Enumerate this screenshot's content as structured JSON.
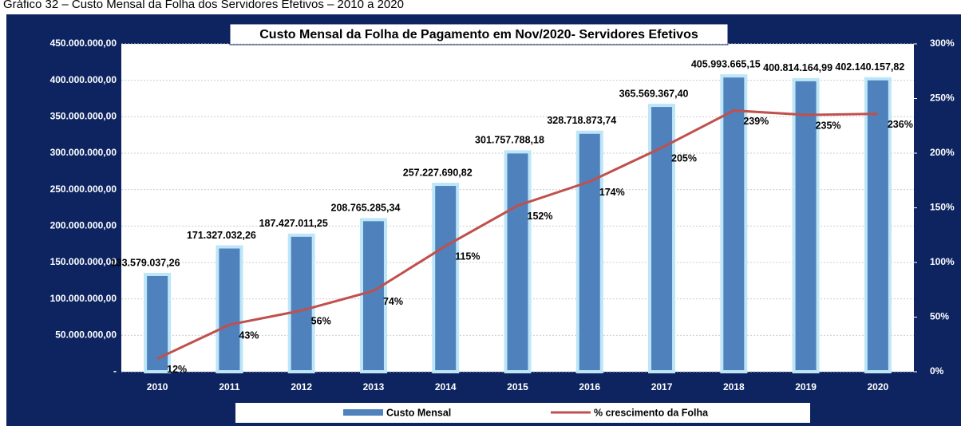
{
  "caption": "Gráfico 32 – Custo Mensal da Folha dos Servidores Efetivos – 2010 a 2020",
  "chart_data": {
    "type": "bar",
    "title": "Custo Mensal da Folha de Pagamento em Nov/2020- Servidores Efetivos",
    "categories": [
      "2010",
      "2011",
      "2012",
      "2013",
      "2014",
      "2015",
      "2016",
      "2017",
      "2018",
      "2019",
      "2020"
    ],
    "series": [
      {
        "name": "Custo Mensal",
        "type": "bar",
        "color": "#4f81bd",
        "values": [
          133579037.26,
          171327032.26,
          187427011.25,
          208765285.34,
          257227690.82,
          301757788.18,
          328718873.74,
          365569367.4,
          405993665.15,
          400814164.99,
          402140157.82
        ],
        "value_labels": [
          "133.579.037,26",
          "171.327.032,26",
          "187.427.011,25",
          "208.765.285,34",
          "257.227.690,82",
          "301.757.788,18",
          "328.718.873,74",
          "365.569.367,40",
          "405.993.665,15",
          "400.814.164,99",
          "402.140.157,82"
        ]
      },
      {
        "name": "% crescimento da Folha",
        "type": "line",
        "axis": "y2",
        "color": "#c0504d",
        "values": [
          12,
          43,
          56,
          74,
          115,
          152,
          174,
          205,
          239,
          235,
          236
        ],
        "value_labels": [
          "12%",
          "43%",
          "56%",
          "74%",
          "115%",
          "152%",
          "174%",
          "205%",
          "239%",
          "235%",
          "236%"
        ]
      }
    ],
    "ylim": [
      0,
      450000000
    ],
    "yticks": [
      {
        "value": 0,
        "label": "-"
      },
      {
        "value": 50000000,
        "label": "50.000.000,00"
      },
      {
        "value": 100000000,
        "label": "100.000.000,00"
      },
      {
        "value": 150000000,
        "label": "150.000.000,00"
      },
      {
        "value": 200000000,
        "label": "200.000.000,00"
      },
      {
        "value": 250000000,
        "label": "250.000.000,00"
      },
      {
        "value": 300000000,
        "label": "300.000.000,00"
      },
      {
        "value": 350000000,
        "label": "350.000.000,00"
      },
      {
        "value": 400000000,
        "label": "400.000.000,00"
      },
      {
        "value": 450000000,
        "label": "450.000.000,00"
      }
    ],
    "y2lim": [
      0,
      300
    ],
    "y2ticks": [
      {
        "value": 0,
        "label": "0%"
      },
      {
        "value": 50,
        "label": "50%"
      },
      {
        "value": 100,
        "label": "100%"
      },
      {
        "value": 150,
        "label": "150%"
      },
      {
        "value": 200,
        "label": "200%"
      },
      {
        "value": 250,
        "label": "250%"
      },
      {
        "value": 300,
        "label": "300%"
      }
    ],
    "grid": true,
    "legend": "bottom"
  }
}
